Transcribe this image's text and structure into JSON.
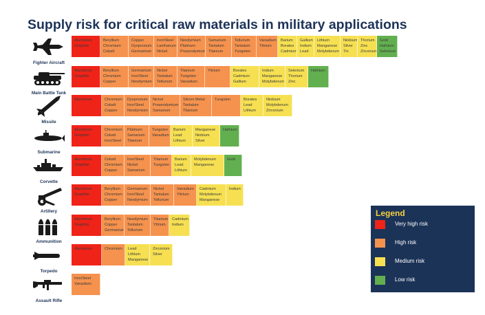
{
  "title": "Supply risk for critical raw materials in military applications",
  "colors": {
    "very_high": "#ef2318",
    "high": "#f5924e",
    "medium": "#f6e052",
    "low": "#62af4f"
  },
  "chart_data": {
    "type": "table",
    "title": "Supply risk for critical raw materials in military applications",
    "risk_levels": [
      "very_high",
      "high",
      "medium",
      "low"
    ],
    "rows": [
      {
        "name": "Fighter Aircraft",
        "icon": "fighter-aircraft-icon",
        "groups": [
          {
            "risk": "very_high",
            "materials": [
              "Aluminium",
              "Graphite"
            ]
          },
          {
            "risk": "high",
            "materials": [
              "Beryllium",
              "Chromium",
              "Cobalt"
            ]
          },
          {
            "risk": "high",
            "materials": [
              "Copper",
              "Dysprosium",
              "Germanium"
            ]
          },
          {
            "risk": "high",
            "materials": [
              "Iron/Steel",
              "Lanthanum",
              "Nickel"
            ]
          },
          {
            "risk": "high",
            "materials": [
              "Neodymium",
              "Platinum",
              "Praseodymium"
            ]
          },
          {
            "risk": "high",
            "materials": [
              "Samarium",
              "Tantalum",
              "Titanium"
            ]
          },
          {
            "risk": "high",
            "materials": [
              "Tellurium",
              "Tantalum",
              "Tungsten"
            ]
          },
          {
            "risk": "high",
            "materials": [
              "Vanadium",
              "Yttrium"
            ]
          },
          {
            "risk": "medium",
            "materials": [
              "Barium",
              "Borates",
              "Cadmium"
            ]
          },
          {
            "risk": "medium",
            "materials": [
              "Gallium",
              "Indium",
              "Lead"
            ]
          },
          {
            "risk": "medium",
            "materials": [
              "Lithium",
              "Manganese",
              "Molybdenum"
            ]
          },
          {
            "risk": "medium",
            "materials": [
              "Niobium",
              "Silver",
              "Tin"
            ]
          },
          {
            "risk": "medium",
            "materials": [
              "Thorium",
              "Zinc",
              "Zirconium"
            ]
          },
          {
            "risk": "low",
            "materials": [
              "Gold",
              "Hafnium",
              "Selenium"
            ]
          }
        ]
      },
      {
        "name": "Main Battle Tank",
        "icon": "tank-icon",
        "groups": [
          {
            "risk": "very_high",
            "materials": [
              "Aluminium",
              "Graphite"
            ]
          },
          {
            "risk": "high",
            "materials": [
              "Beryllium",
              "Chromium",
              "Copper"
            ]
          },
          {
            "risk": "high",
            "materials": [
              "Germanium",
              "Iron/Steel",
              "Neodymium"
            ]
          },
          {
            "risk": "high",
            "materials": [
              "Nickel",
              "Tantalum",
              "Tellurium"
            ]
          },
          {
            "risk": "high",
            "materials": [
              "Titanium",
              "Tungsten",
              "Vanadium"
            ]
          },
          {
            "risk": "high",
            "materials": [
              "Yttrium"
            ]
          },
          {
            "risk": "medium",
            "materials": [
              "Borates",
              "Cadmium",
              "Gallium"
            ]
          },
          {
            "risk": "medium",
            "materials": [
              "Indium",
              "Manganese",
              "Molybdenum"
            ]
          },
          {
            "risk": "medium",
            "materials": [
              "Selenium",
              "Thorium",
              "Zinc"
            ]
          },
          {
            "risk": "low",
            "materials": [
              "Hafnium"
            ]
          }
        ]
      },
      {
        "name": "Missile",
        "icon": "missile-icon",
        "groups": [
          {
            "risk": "very_high",
            "materials": [
              "Aluminium"
            ]
          },
          {
            "risk": "high",
            "materials": [
              "Chromium",
              "Cobalt",
              "Copper"
            ]
          },
          {
            "risk": "high",
            "materials": [
              "Dysprosium",
              "Iron/Steel",
              "Neodymium"
            ]
          },
          {
            "risk": "high",
            "materials": [
              "Nickel",
              "Praseodymium",
              "Samarium"
            ]
          },
          {
            "risk": "high",
            "materials": [
              "Silicon Metal",
              "Tantalum",
              "Titanium"
            ]
          },
          {
            "risk": "high",
            "materials": [
              "Tungsten"
            ]
          },
          {
            "risk": "medium",
            "materials": [
              "Borates",
              "Lead",
              "Lithium"
            ]
          },
          {
            "risk": "medium",
            "materials": [
              "Niobium",
              "Molybdenum",
              "Zirconium"
            ]
          }
        ]
      },
      {
        "name": "Submarine",
        "icon": "submarine-icon",
        "groups": [
          {
            "risk": "very_high",
            "materials": [
              "Aluminium",
              "Graphite"
            ]
          },
          {
            "risk": "high",
            "materials": [
              "Chromium",
              "Cobalt",
              "Iron/Steel"
            ]
          },
          {
            "risk": "high",
            "materials": [
              "Platinum",
              "Samarium",
              "Titanium"
            ]
          },
          {
            "risk": "high",
            "materials": [
              "Tungsten",
              "Vanadium"
            ]
          },
          {
            "risk": "medium",
            "materials": [
              "Barium",
              "Lead",
              "Lithium"
            ]
          },
          {
            "risk": "medium",
            "materials": [
              "Manganese",
              "Niobium",
              "Silver"
            ]
          },
          {
            "risk": "low",
            "materials": [
              "Hafnium"
            ]
          }
        ]
      },
      {
        "name": "Corvette",
        "icon": "corvette-icon",
        "groups": [
          {
            "risk": "very_high",
            "materials": [
              "Aluminium",
              "Graphite"
            ]
          },
          {
            "risk": "high",
            "materials": [
              "Cobalt",
              "Chromium",
              "Copper"
            ]
          },
          {
            "risk": "high",
            "materials": [
              "Iron/Steel",
              "Nickel",
              "Samarium"
            ]
          },
          {
            "risk": "high",
            "materials": [
              "Titanium",
              "Tungsten"
            ]
          },
          {
            "risk": "medium",
            "materials": [
              "Barium",
              "Lead",
              "Lithium"
            ]
          },
          {
            "risk": "medium",
            "materials": [
              "Molybdenum",
              "Manganese"
            ]
          },
          {
            "risk": "low",
            "materials": [
              "Gold"
            ]
          }
        ]
      },
      {
        "name": "Artillery",
        "icon": "artillery-icon",
        "groups": [
          {
            "risk": "very_high",
            "materials": [
              "Aluminium",
              "Graphite"
            ]
          },
          {
            "risk": "high",
            "materials": [
              "Beryllium",
              "Chromium",
              "Copper"
            ]
          },
          {
            "risk": "high",
            "materials": [
              "Germanium",
              "Iron/Steel",
              "Neodymium"
            ]
          },
          {
            "risk": "high",
            "materials": [
              "Nickel",
              "Tantalum",
              "Tellurium"
            ]
          },
          {
            "risk": "high",
            "materials": [
              "Vanadium",
              "Yttrium"
            ]
          },
          {
            "risk": "medium",
            "materials": [
              "Cadmium",
              "Molybdenum",
              "Manganese"
            ]
          },
          {
            "risk": "medium",
            "materials": [
              "Indium"
            ]
          }
        ]
      },
      {
        "name": "Ammunition",
        "icon": "ammunition-icon",
        "groups": [
          {
            "risk": "very_high",
            "materials": [
              "Aluminium",
              "Graphite"
            ]
          },
          {
            "risk": "high",
            "materials": [
              "Beryllium",
              "Copper",
              "Germanium"
            ]
          },
          {
            "risk": "high",
            "materials": [
              "Neodymium",
              "Tantalum",
              "Tellurium"
            ]
          },
          {
            "risk": "high",
            "materials": [
              "Titanium",
              "Yttrium"
            ]
          },
          {
            "risk": "medium",
            "materials": [
              "Cadmium",
              "Indium"
            ]
          }
        ]
      },
      {
        "name": "Torpedo",
        "icon": "torpedo-icon",
        "groups": [
          {
            "risk": "very_high",
            "materials": [
              "Aluminium"
            ]
          },
          {
            "risk": "high",
            "materials": [
              "Chromium"
            ]
          },
          {
            "risk": "medium",
            "materials": [
              "Lead",
              "Lithium",
              "Manganese"
            ]
          },
          {
            "risk": "medium",
            "materials": [
              "Zirconium",
              "Silver"
            ]
          }
        ]
      },
      {
        "name": "Assault Rifle",
        "icon": "assault-rifle-icon",
        "groups": [
          {
            "risk": "high",
            "materials": [
              "Iron/Steel",
              "Vanadium"
            ]
          }
        ]
      }
    ],
    "legend": {
      "title": "Legend",
      "position": "bottom-right",
      "items": [
        {
          "risk": "very_high",
          "label": "Very high risk"
        },
        {
          "risk": "high",
          "label": "High risk"
        },
        {
          "risk": "medium",
          "label": "Medium risk"
        },
        {
          "risk": "low",
          "label": "Low risk"
        }
      ]
    }
  }
}
